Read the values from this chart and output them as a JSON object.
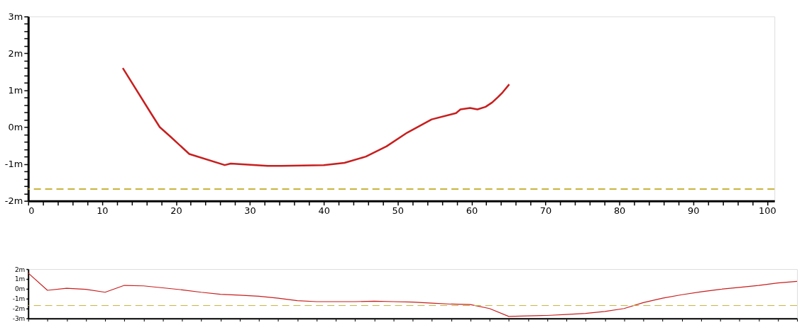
{
  "chart_data": [
    {
      "type": "line",
      "x": [
        12.8,
        16.6,
        17.8,
        19.2,
        21.8,
        26.6,
        27.4,
        32.4,
        34.3,
        40,
        42.8,
        45.7,
        48.5,
        51.3,
        54.6,
        57.9,
        58.5,
        59.8,
        60.8,
        61.9,
        62.8,
        63.6,
        64.2,
        65.1
      ],
      "series": [
        {
          "color": "#c81e1e",
          "values": [
            1.6,
            0.38,
            0.0,
            -0.25,
            -0.73,
            -1.03,
            -0.99,
            -1.05,
            -1.05,
            -1.03,
            -0.97,
            -0.8,
            -0.52,
            -0.15,
            0.21,
            0.38,
            0.48,
            0.52,
            0.48,
            0.55,
            0.67,
            0.82,
            0.94,
            1.16
          ]
        }
      ],
      "xlim": [
        0,
        101
      ],
      "xticks": [
        0,
        {
          "value": 2,
          "label": null
        },
        {
          "value": 4,
          "label": null
        },
        {
          "value": 6,
          "label": null
        },
        {
          "value": 8,
          "label": null
        },
        10,
        {
          "value": 12,
          "label": null
        },
        {
          "value": 14,
          "label": null
        },
        {
          "value": 16,
          "label": null
        },
        {
          "value": 18,
          "label": null
        },
        20,
        {
          "value": 22,
          "label": null
        },
        {
          "value": 24,
          "label": null
        },
        {
          "value": 26,
          "label": null
        },
        {
          "value": 28,
          "label": null
        },
        30,
        {
          "value": 32,
          "label": null
        },
        {
          "value": 34,
          "label": null
        },
        {
          "value": 36,
          "label": null
        },
        {
          "value": 38,
          "label": null
        },
        40,
        {
          "value": 42,
          "label": null
        },
        {
          "value": 44,
          "label": null
        },
        {
          "value": 46,
          "label": null
        },
        {
          "value": 48,
          "label": null
        },
        50,
        {
          "value": 52,
          "label": null
        },
        {
          "value": 54,
          "label": null
        },
        {
          "value": 56,
          "label": null
        },
        {
          "value": 58,
          "label": null
        },
        60,
        {
          "value": 62,
          "label": null
        },
        {
          "value": 64,
          "label": null
        },
        {
          "value": 66,
          "label": null
        },
        {
          "value": 68,
          "label": null
        },
        70,
        {
          "value": 72,
          "label": null
        },
        {
          "value": 74,
          "label": null
        },
        {
          "value": 76,
          "label": null
        },
        {
          "value": 78,
          "label": null
        },
        80,
        {
          "value": 82,
          "label": null
        },
        {
          "value": 84,
          "label": null
        },
        {
          "value": 86,
          "label": null
        },
        {
          "value": 88,
          "label": null
        },
        90,
        {
          "value": 92,
          "label": null
        },
        {
          "value": 94,
          "label": null
        },
        {
          "value": 96,
          "label": null
        },
        {
          "value": 98,
          "label": null
        },
        100
      ],
      "ylim": [
        -2,
        3
      ],
      "yticks": [
        {
          "value": -2,
          "label": "-2m"
        },
        {
          "value": -1.8,
          "label": null
        },
        {
          "value": -1.6,
          "label": null
        },
        {
          "value": -1.4,
          "label": null
        },
        {
          "value": -1.2,
          "label": null
        },
        {
          "value": -1,
          "label": "-1m"
        },
        {
          "value": -0.8,
          "label": null
        },
        {
          "value": -0.6,
          "label": null
        },
        {
          "value": -0.4,
          "label": null
        },
        {
          "value": -0.2,
          "label": null
        },
        {
          "value": 0,
          "label": "0m"
        },
        {
          "value": 0.2,
          "label": null
        },
        {
          "value": 0.4,
          "label": null
        },
        {
          "value": 0.6,
          "label": null
        },
        {
          "value": 0.8,
          "label": null
        },
        {
          "value": 1,
          "label": "1m"
        },
        {
          "value": 1.2,
          "label": null
        },
        {
          "value": 1.4,
          "label": null
        },
        {
          "value": 1.6,
          "label": null
        },
        {
          "value": 1.8,
          "label": null
        },
        {
          "value": 2,
          "label": "2m"
        },
        {
          "value": 2.2,
          "label": null
        },
        {
          "value": 2.4,
          "label": null
        },
        {
          "value": 2.6,
          "label": null
        },
        {
          "value": 2.8,
          "label": null
        },
        {
          "value": 3,
          "label": "3m"
        }
      ],
      "ref_lines": [
        {
          "axis": "y",
          "value": -1.68,
          "color": "#c8b43c",
          "line_style": "dashed"
        }
      ],
      "grid": false
    },
    {
      "type": "line",
      "categories": [
        null,
        null,
        null,
        null,
        null,
        null,
        null,
        null,
        null,
        null,
        null,
        null,
        null,
        null,
        null,
        null,
        null,
        null,
        null,
        null,
        null,
        null,
        null,
        null,
        null,
        null,
        null,
        null,
        null,
        null,
        null,
        null,
        null,
        null,
        null,
        null,
        null,
        null,
        null,
        null,
        null
      ],
      "series": [
        {
          "color": "#c81e1e",
          "values": [
            1.6,
            -0.15,
            0.05,
            -0.05,
            -0.35,
            0.35,
            0.3,
            0.1,
            -0.1,
            -0.35,
            -0.55,
            -0.65,
            -0.75,
            -0.95,
            -1.2,
            -1.3,
            -1.3,
            -1.3,
            -1.25,
            -1.3,
            -1.35,
            -1.45,
            -1.55,
            -1.6,
            -2.0,
            -2.8,
            -2.75,
            -2.7,
            -2.6,
            -2.5,
            -2.3,
            -2.0,
            -1.4,
            -0.95,
            -0.6,
            -0.3,
            -0.05,
            0.15,
            0.35,
            0.6,
            0.75
          ]
        }
      ],
      "ylim": [
        -3,
        2
      ],
      "yticks": [
        {
          "value": -3,
          "label": "-3m"
        },
        {
          "value": -2,
          "label": "-2m"
        },
        {
          "value": -1,
          "label": "-1m"
        },
        {
          "value": 0,
          "label": "0m"
        },
        {
          "value": 1,
          "label": "1m"
        },
        {
          "value": 2,
          "label": "2m"
        }
      ],
      "ref_lines": [
        {
          "axis": "y",
          "value": -1.7,
          "color": "#c8b43c",
          "line_style": "dashed"
        }
      ],
      "tick_labels": "y",
      "grid": false
    }
  ]
}
